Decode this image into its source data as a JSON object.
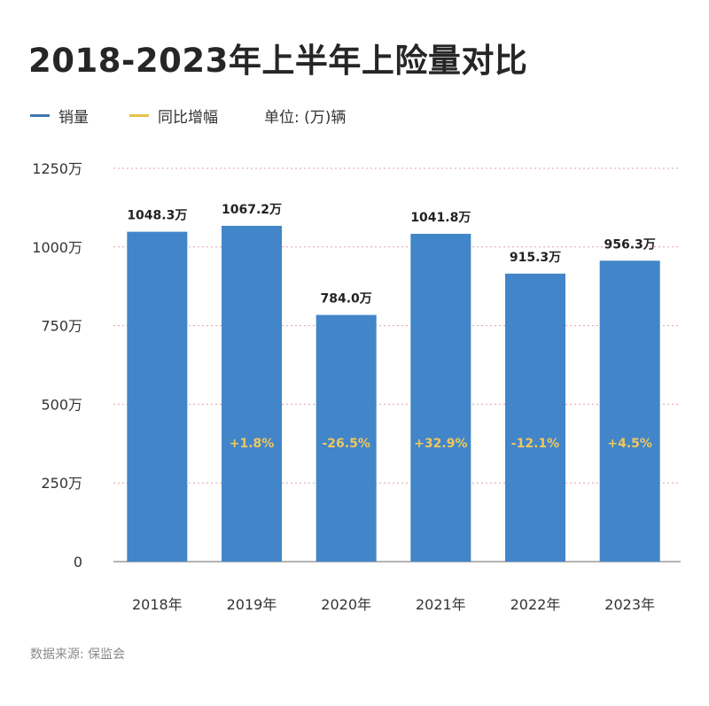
{
  "title": "2018-2023年上半年上险量对比",
  "legend": {
    "sales_label": "销量",
    "yoy_label": "同比增幅",
    "unit_label": "单位: (万)辆"
  },
  "colors": {
    "bar": "#4285c8",
    "yoy_text": "#f0c75e",
    "legend_sales": "#3f78ad",
    "legend_yoy": "#e7c14a",
    "grid": "#e2a0a0",
    "axis": "#9a9a9a"
  },
  "source": "数据来源:  保监会",
  "chart_data": {
    "type": "bar",
    "title": "2018-2023年上半年上险量对比",
    "categories": [
      "2018年",
      "2019年",
      "2020年",
      "2021年",
      "2022年",
      "2023年"
    ],
    "series": [
      {
        "name": "销量",
        "values": [
          1048.3,
          1067.2,
          784.0,
          1041.8,
          915.3,
          956.3
        ],
        "value_labels": [
          "1048.3万",
          "1067.2万",
          "784.0万",
          "1041.8万",
          "915.3万",
          "956.3万"
        ]
      },
      {
        "name": "同比增幅",
        "values": [
          null,
          1.8,
          -26.5,
          32.9,
          -12.1,
          4.5
        ],
        "value_labels": [
          "",
          "+1.8%",
          "-26.5%",
          "+32.9%",
          "-12.1%",
          "+4.5%"
        ]
      }
    ],
    "ylim": [
      0,
      1250
    ],
    "yticks": [
      0,
      250,
      500,
      750,
      1000,
      1250
    ],
    "ytick_labels": [
      "0",
      "250万",
      "500万",
      "750万",
      "1000万",
      "1250万"
    ],
    "grid": true,
    "legend_position": "top-left"
  }
}
